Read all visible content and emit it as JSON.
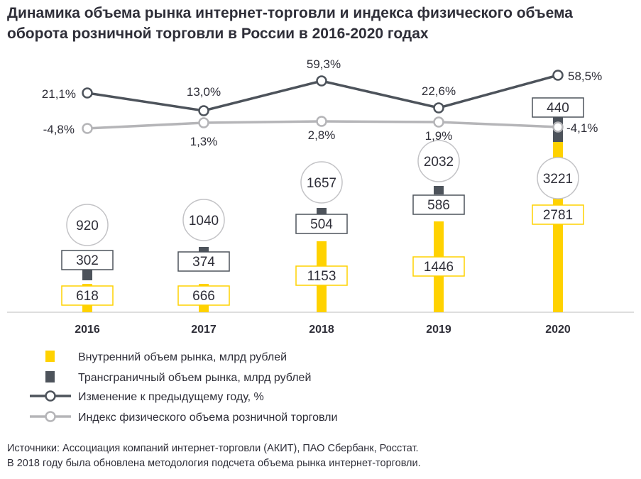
{
  "title": "Динамика объема рынка интернет-торговли и индекса физического объема оборота розничной торговли в России в 2016-2020 годах",
  "colors": {
    "domestic": "#FFD200",
    "crossborder": "#4D535B",
    "change_line": "#4D535B",
    "index_line": "#B5B5B8"
  },
  "chart_data": {
    "type": "bar",
    "categories": [
      "2016",
      "2017",
      "2018",
      "2019",
      "2020"
    ],
    "series": [
      {
        "name": "Внутренний объем рынка, млрд рублей",
        "type": "bar",
        "values": [
          618,
          666,
          1153,
          1446,
          2781
        ],
        "labels": [
          "618",
          "666",
          "1153",
          "1446",
          "2781"
        ]
      },
      {
        "name": "Трансграничный объем рынка, млрд рублей",
        "type": "bar",
        "values": [
          302,
          374,
          504,
          586,
          440
        ],
        "labels": [
          "302",
          "374",
          "504",
          "586",
          "440"
        ]
      },
      {
        "name": "Изменение к предыдущему году, %",
        "type": "line",
        "values": [
          21.1,
          13.0,
          59.3,
          22.6,
          58.5
        ],
        "labels": [
          "21,1%",
          "13,0%",
          "59,3%",
          "22,6%",
          "58,5%"
        ]
      },
      {
        "name": "Индекс физического объема розничной торговли",
        "type": "line",
        "values": [
          -4.8,
          1.3,
          2.8,
          1.9,
          -4.1
        ],
        "labels": [
          "-4,8%",
          "1,3%",
          "2,8%",
          "1,9%",
          "-4,1%"
        ]
      }
    ],
    "totals": [
      "920",
      "1040",
      "1657",
      "2032",
      "3221"
    ],
    "legend_position": "bottom-left",
    "grid": false
  },
  "sources": {
    "line1": "Источники: Ассоциация компаний интернет-торговли (АКИТ), ПАО Сбербанк, Росстат.",
    "line2": "В 2018 году была обновлена методология подсчета объема рынка интернет-торговли."
  }
}
